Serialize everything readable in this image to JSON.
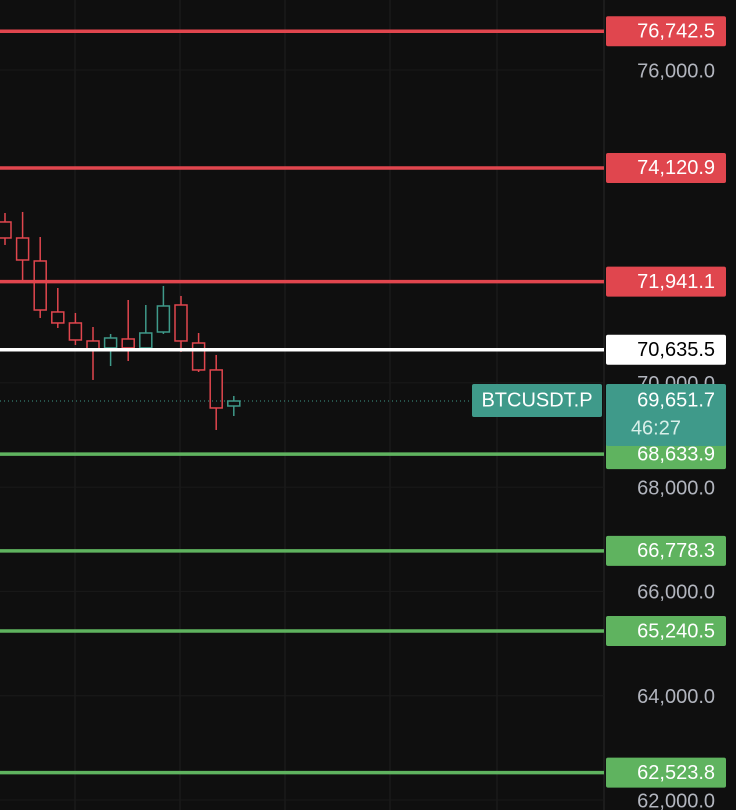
{
  "chart_data": {
    "type": "candlestick",
    "categories": [
      null,
      null,
      null,
      null,
      null,
      null,
      null,
      null,
      null,
      null,
      null,
      null,
      null,
      null
    ],
    "open": [
      73085,
      72778,
      72337,
      71359,
      71148,
      70803,
      70669,
      70841,
      70669,
      70975,
      71493,
      70764,
      70247,
      69556
    ],
    "high": [
      73257,
      73277,
      72797,
      71819,
      71340,
      71071,
      70937,
      71589,
      71493,
      71858,
      71666,
      70956,
      70535,
      69748
    ],
    "low": [
      72644,
      71915,
      71244,
      71052,
      70726,
      70055,
      70323,
      70419,
      70630,
      70937,
      70592,
      70208,
      69096,
      69364
    ],
    "close": [
      72778,
      72356,
      71397,
      71148,
      70822,
      70649,
      70860,
      70669,
      70956,
      71474,
      70803,
      70247,
      69518,
      69651.7
    ],
    "up_color": "#3f9a8a",
    "down_color": "#e0464e",
    "ylim": [
      61808,
      77342
    ],
    "yticks": [
      {
        "value": 76000,
        "label": "76,000.0"
      },
      {
        "value": 70000,
        "label": "70,000.0"
      },
      {
        "value": 68000,
        "label": "68,000.0"
      },
      {
        "value": 66000,
        "label": "66,000.0"
      },
      {
        "value": 64000,
        "label": "64,000.0"
      },
      {
        "value": 62000,
        "label": "62,000.0"
      }
    ],
    "price_levels": [
      {
        "value": 76742.5,
        "label": "76,742.5",
        "color": "#e0464e"
      },
      {
        "value": 74120.9,
        "label": "74,120.9",
        "color": "#e0464e"
      },
      {
        "value": 71941.1,
        "label": "71,941.1",
        "color": "#e0464e"
      },
      {
        "value": 70635.5,
        "label": "70,635.5",
        "color": "#ffffff"
      },
      {
        "value": 68633.9,
        "label": "68,633.9",
        "color": "#5fb35f"
      },
      {
        "value": 66778.3,
        "label": "66,778.3",
        "color": "#5fb35f"
      },
      {
        "value": 65240.5,
        "label": "65,240.5",
        "color": "#5fb35f"
      },
      {
        "value": 62523.8,
        "label": "62,523.8",
        "color": "#5fb35f"
      }
    ],
    "last_price": {
      "value": 69651.7,
      "label": "69,651.7",
      "symbol": "BTCUSDT.P",
      "countdown": "46:27",
      "color": "#3f9a8a"
    }
  }
}
